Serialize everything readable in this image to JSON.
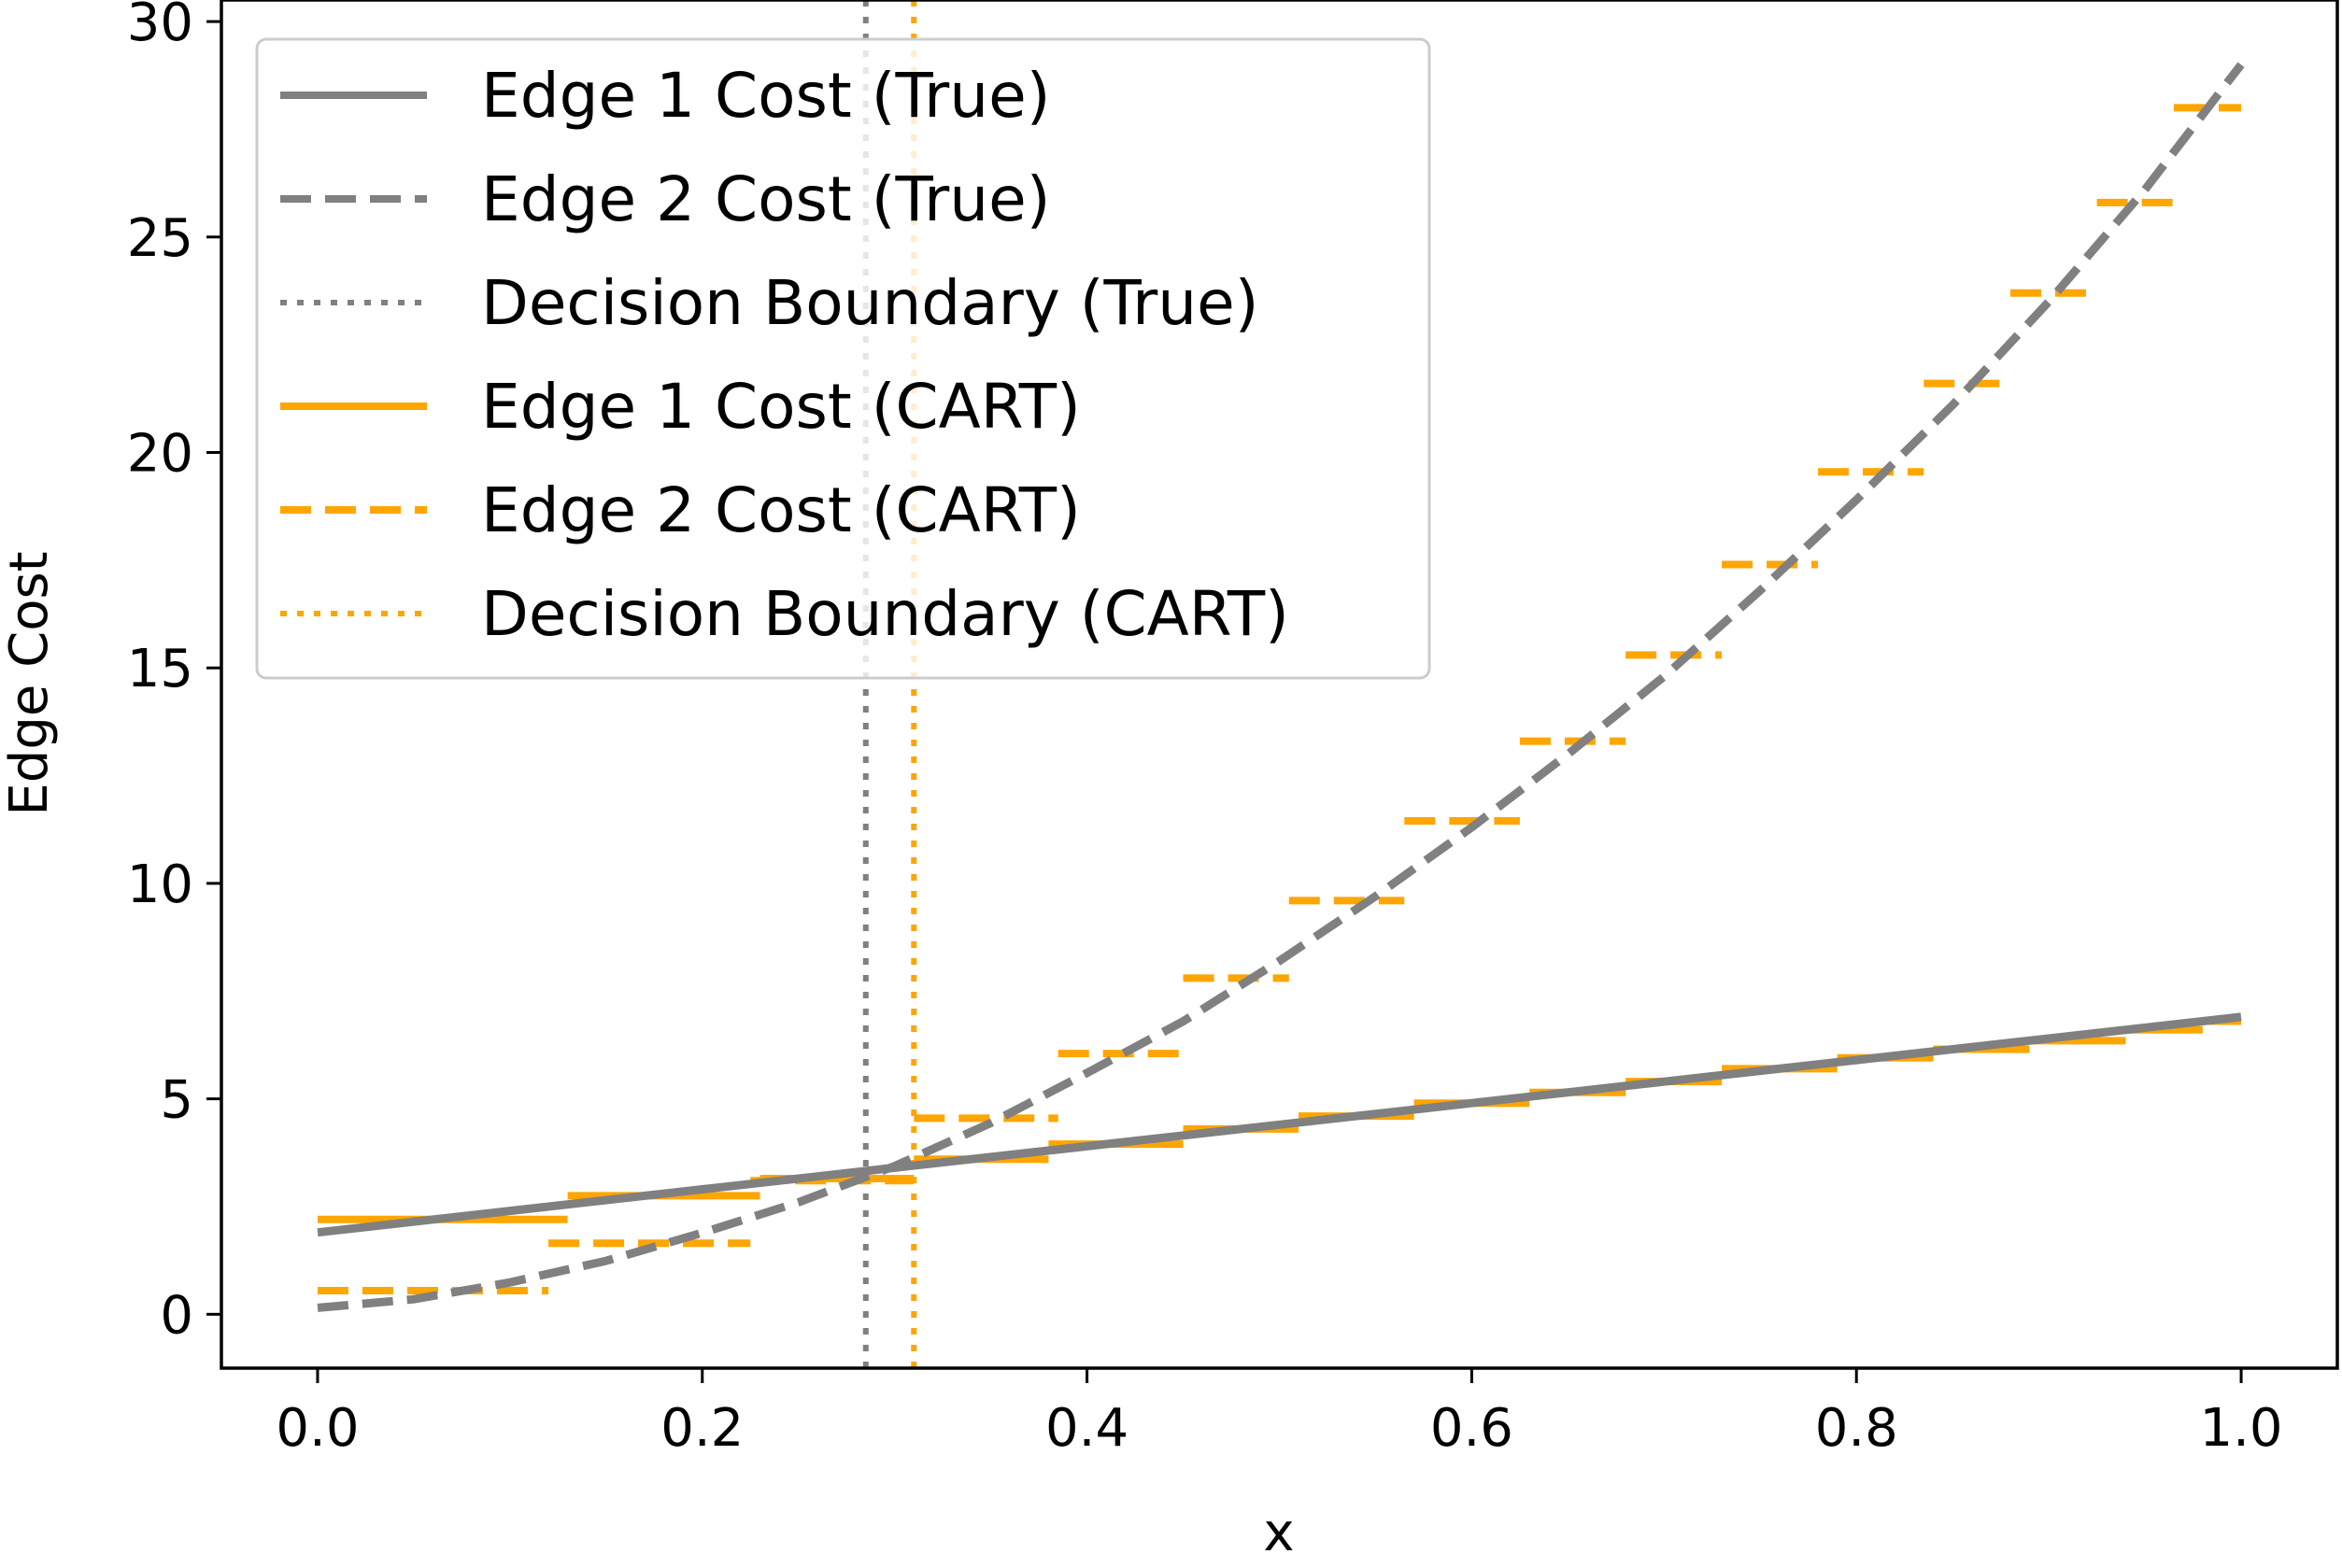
{
  "chart_data": {
    "type": "line",
    "title": "",
    "xlabel": "x",
    "ylabel": "Edge Cost",
    "xlim": [
      -0.05,
      1.05
    ],
    "ylim": [
      -1.25,
      30.5
    ],
    "x_ticks": [
      0.0,
      0.2,
      0.4,
      0.6,
      0.8,
      1.0
    ],
    "x_tick_labels": [
      "0.0",
      "0.2",
      "0.4",
      "0.6",
      "0.8",
      "1.0"
    ],
    "y_ticks": [
      0,
      5,
      10,
      15,
      20,
      25,
      30
    ],
    "y_tick_labels": [
      "0",
      "5",
      "10",
      "15",
      "20",
      "25",
      "30"
    ],
    "legend_position": "upper-left",
    "colors": {
      "true": "#808080",
      "cart": "#ffa500"
    },
    "series": [
      {
        "name": "Edge 1 Cost (True)",
        "kind": "line",
        "style": "solid",
        "color": "#808080",
        "x": [
          0.0,
          0.1,
          0.2,
          0.3,
          0.4,
          0.5,
          0.6,
          0.7,
          0.8,
          0.9,
          1.0
        ],
        "y": [
          1.9,
          2.4,
          2.9,
          3.4,
          3.9,
          4.4,
          4.9,
          5.4,
          5.9,
          6.4,
          6.9
        ]
      },
      {
        "name": "Edge 2 Cost (True)",
        "kind": "line",
        "style": "dashed",
        "color": "#808080",
        "x": [
          0.0,
          0.05,
          0.1,
          0.15,
          0.2,
          0.25,
          0.3,
          0.35,
          0.4,
          0.45,
          0.5,
          0.55,
          0.6,
          0.65,
          0.7,
          0.75,
          0.8,
          0.85,
          0.9,
          0.95,
          1.0
        ],
        "y": [
          0.15,
          0.35,
          0.74,
          1.24,
          1.89,
          2.6,
          3.44,
          4.44,
          5.6,
          6.8,
          8.2,
          9.7,
          11.3,
          13.0,
          14.8,
          16.8,
          18.9,
          21.1,
          23.5,
          26.1,
          29.0
        ]
      },
      {
        "name": "Decision Boundary (True)",
        "kind": "vline",
        "style": "dotted",
        "color": "#808080",
        "x": 0.285
      },
      {
        "name": "Edge 1 Cost (CART)",
        "kind": "step",
        "style": "solid",
        "color": "#ffa500",
        "segments": [
          [
            0.0,
            0.13,
            2.2
          ],
          [
            0.13,
            0.23,
            2.75
          ],
          [
            0.23,
            0.31,
            3.15
          ],
          [
            0.31,
            0.38,
            3.6
          ],
          [
            0.38,
            0.45,
            3.95
          ],
          [
            0.45,
            0.51,
            4.3
          ],
          [
            0.51,
            0.57,
            4.6
          ],
          [
            0.57,
            0.63,
            4.9
          ],
          [
            0.63,
            0.68,
            5.15
          ],
          [
            0.68,
            0.73,
            5.4
          ],
          [
            0.73,
            0.79,
            5.7
          ],
          [
            0.79,
            0.84,
            5.95
          ],
          [
            0.84,
            0.89,
            6.15
          ],
          [
            0.89,
            0.94,
            6.35
          ],
          [
            0.94,
            0.98,
            6.6
          ],
          [
            0.98,
            1.0,
            6.8
          ]
        ]
      },
      {
        "name": "Edge 2 Cost (CART)",
        "kind": "step",
        "style": "dashed",
        "color": "#ffa500",
        "segments": [
          [
            0.0,
            0.12,
            0.55
          ],
          [
            0.12,
            0.225,
            1.65
          ],
          [
            0.225,
            0.31,
            3.1
          ],
          [
            0.31,
            0.385,
            4.55
          ],
          [
            0.385,
            0.45,
            6.05
          ],
          [
            0.45,
            0.505,
            7.8
          ],
          [
            0.505,
            0.565,
            9.6
          ],
          [
            0.565,
            0.625,
            11.45
          ],
          [
            0.625,
            0.68,
            13.3
          ],
          [
            0.68,
            0.73,
            15.3
          ],
          [
            0.73,
            0.78,
            17.4
          ],
          [
            0.78,
            0.835,
            19.55
          ],
          [
            0.835,
            0.88,
            21.6
          ],
          [
            0.88,
            0.925,
            23.7
          ],
          [
            0.925,
            0.965,
            25.8
          ],
          [
            0.965,
            1.0,
            28.0
          ]
        ]
      },
      {
        "name": "Decision Boundary (CART)",
        "kind": "vline",
        "style": "dotted",
        "color": "#ffa500",
        "x": 0.31
      }
    ]
  }
}
